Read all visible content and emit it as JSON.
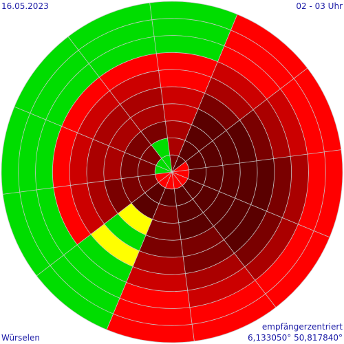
{
  "header": {
    "date": "16.05.2023",
    "hour": "02 - 03 Uhr"
  },
  "footer": {
    "location": "Würselen",
    "mode": "empfängerzentriert",
    "coordinates": "6,133050° 50,817840°"
  },
  "chart_data": {
    "type": "heatmap",
    "projection": "polar",
    "sector_count": 12,
    "ring_count": 10,
    "colors": {
      "lime": "#00dd00",
      "yellow": "#ffff00",
      "red": "#ff0000",
      "darkred1": "#cc0000",
      "darkred2": "#aa0000",
      "darkred3": "#7a0000",
      "darkred4": "#5a0000"
    },
    "sectors": [
      [
        "darkred4",
        "darkred4",
        "darkred4",
        "darkred4",
        "darkred3",
        "darkred2",
        "darkred1",
        "red",
        "red",
        "red"
      ],
      [
        "red",
        "darkred4",
        "darkred4",
        "darkred4",
        "darkred4",
        "darkred3",
        "darkred2",
        "darkred1",
        "red",
        "red"
      ],
      [
        "red",
        "darkred4",
        "darkred4",
        "darkred4",
        "darkred4",
        "darkred4",
        "darkred3",
        "darkred2",
        "red",
        "red"
      ],
      [
        "red",
        "darkred4",
        "darkred4",
        "darkred4",
        "darkred4",
        "darkred4",
        "darkred3",
        "darkred2",
        "red",
        "red"
      ],
      [
        "red",
        "darkred4",
        "darkred4",
        "darkred4",
        "darkred3",
        "darkred3",
        "darkred2",
        "darkred1",
        "red",
        "red"
      ],
      [
        "red",
        "darkred4",
        "darkred3",
        "darkred3",
        "darkred3",
        "darkred2",
        "darkred1",
        "red",
        "red",
        "red"
      ],
      [
        "red",
        "darkred4",
        "darkred4",
        "yellow",
        "lime",
        "yellow",
        "lime",
        "lime",
        "lime",
        "lime"
      ],
      [
        "red",
        "darkred3",
        "darkred3",
        "darkred3",
        "darkred2",
        "darkred1",
        "red",
        "lime",
        "lime",
        "lime"
      ],
      [
        "lime",
        "darkred3",
        "darkred3",
        "darkred2",
        "darkred2",
        "darkred1",
        "red",
        "lime",
        "lime",
        "lime"
      ],
      [
        "lime",
        "darkred3",
        "darkred3",
        "darkred2",
        "darkred2",
        "darkred1",
        "red",
        "lime",
        "lime",
        "lime"
      ],
      [
        "lime",
        "lime",
        "darkred3",
        "darkred2",
        "darkred2",
        "darkred1",
        "red",
        "lime",
        "lime",
        "lime"
      ],
      [
        "darkred3",
        "darkred2",
        "darkred2",
        "darkred1",
        "darkred1",
        "red",
        "red",
        "lime",
        "lime",
        "lime"
      ]
    ],
    "split_sector": {
      "index": 2,
      "split_after_ring": 4,
      "outer_fill": [
        "red",
        "red",
        "yellow",
        "red",
        "red",
        "yellow"
      ]
    }
  }
}
